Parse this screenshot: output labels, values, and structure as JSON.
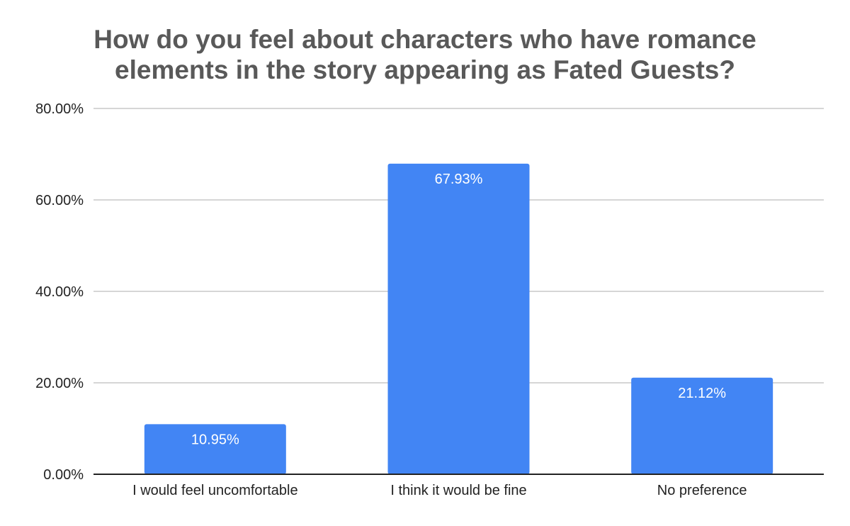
{
  "chart_data": {
    "type": "bar",
    "title_lines": [
      "How do you feel about characters who have romance",
      "elements in the story appearing as Fated Guests?"
    ],
    "categories": [
      "I would feel uncomfortable",
      "I think it would be fine",
      "No preference"
    ],
    "values": [
      10.95,
      67.93,
      21.12
    ],
    "data_labels": [
      "10.95%",
      "67.93%",
      "21.12%"
    ],
    "yticks": [
      0,
      20,
      40,
      60,
      80
    ],
    "ytick_labels": [
      "0.00%",
      "20.00%",
      "40.00%",
      "60.00%",
      "80.00%"
    ],
    "ylim": [
      0,
      80
    ],
    "xlabel": "",
    "ylabel": "",
    "grid": true,
    "legend": "none"
  },
  "colors": {
    "bar": "#4285f4",
    "title": "#595959",
    "gridline": "#c8c8c8",
    "axis": "#222222",
    "text": "#222222",
    "data_label": "#ffffff"
  }
}
